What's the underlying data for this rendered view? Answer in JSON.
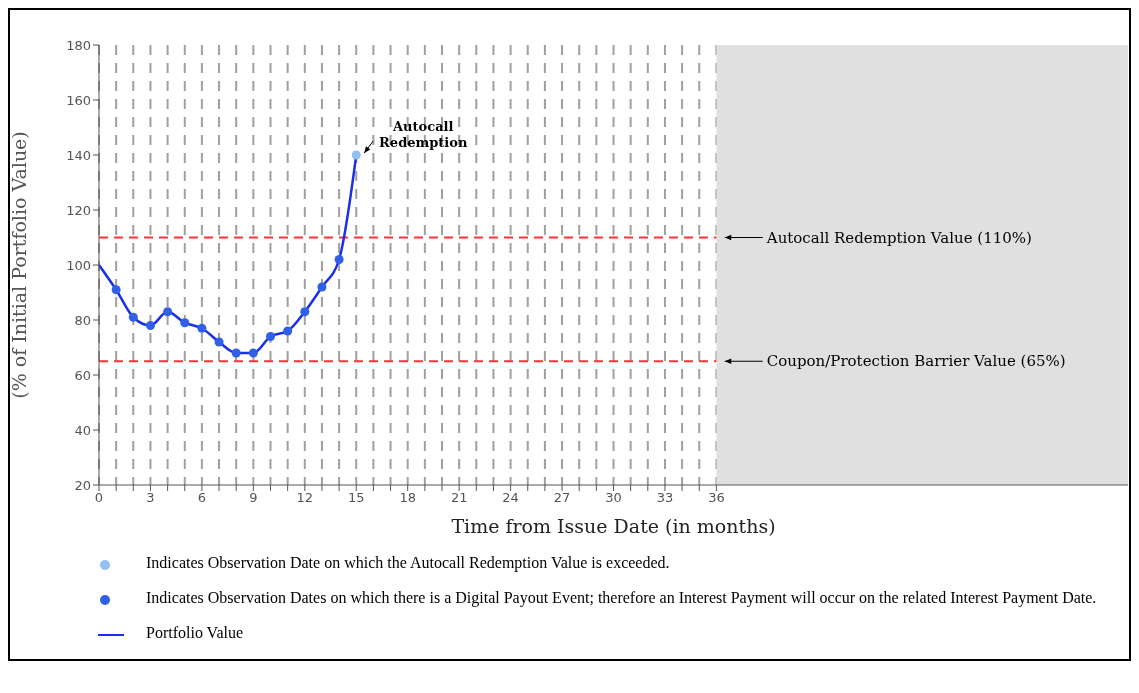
{
  "chart_data": {
    "type": "line",
    "xlabel": "Time from Issue Date (in months)",
    "ylabel": "(% of Initial Portfolio Value)",
    "xlim": [
      0,
      60
    ],
    "ylim": [
      20,
      180
    ],
    "xticks": [
      0,
      {
        "value": 1,
        "label": null
      },
      {
        "value": 2,
        "label": null
      },
      3,
      {
        "value": 4,
        "label": null
      },
      {
        "value": 5,
        "label": null
      },
      6,
      {
        "value": 7,
        "label": null
      },
      {
        "value": 8,
        "label": null
      },
      9,
      {
        "value": 10,
        "label": null
      },
      {
        "value": 11,
        "label": null
      },
      12,
      {
        "value": 13,
        "label": null
      },
      {
        "value": 14,
        "label": null
      },
      15,
      {
        "value": 16,
        "label": null
      },
      {
        "value": 17,
        "label": null
      },
      18,
      {
        "value": 19,
        "label": null
      },
      {
        "value": 20,
        "label": null
      },
      21,
      {
        "value": 22,
        "label": null
      },
      {
        "value": 23,
        "label": null
      },
      24,
      {
        "value": 25,
        "label": null
      },
      {
        "value": 26,
        "label": null
      },
      27,
      {
        "value": 28,
        "label": null
      },
      {
        "value": 29,
        "label": null
      },
      30,
      {
        "value": 31,
        "label": null
      },
      {
        "value": 32,
        "label": null
      },
      33,
      {
        "value": 34,
        "label": null
      },
      {
        "value": 35,
        "label": null
      },
      36
    ],
    "yticks": [
      20,
      40,
      60,
      80,
      100,
      120,
      140,
      160,
      180
    ],
    "grid": "x",
    "legend": "bottom",
    "series": [
      {
        "type": "scatter",
        "name": "Indicates Observation Date on which the Autocall Redemption Value is exceeded.",
        "color": "#90c0f4",
        "marker": "circle",
        "x": [
          15
        ],
        "values": [
          140
        ]
      },
      {
        "type": "scatter",
        "name": "Indicates Observation Dates on which there is a Digital Payout Event; therefore an Interest Payment will occur on the related Interest Payment Date.",
        "color": "#3060e8",
        "marker": "circle",
        "x": [
          1,
          2,
          3,
          4,
          5,
          6,
          7,
          8,
          9,
          10,
          11,
          12,
          13,
          14
        ],
        "values": [
          91,
          81,
          78,
          83,
          79,
          77,
          72,
          68,
          68,
          74,
          76,
          83,
          92,
          102
        ]
      },
      {
        "type": "line",
        "name": "Portfolio Value",
        "color": "#1a30e8",
        "marker": "none",
        "line_style": "solid",
        "x": [
          0,
          1,
          2,
          3,
          4,
          5,
          6,
          7,
          8,
          9,
          10,
          11,
          12,
          13,
          14,
          15
        ],
        "values": [
          100,
          91,
          81,
          78,
          83,
          79,
          77,
          72,
          68,
          68,
          74,
          76,
          83,
          92,
          102,
          140
        ]
      }
    ],
    "ref_lines": [
      {
        "axis": "y",
        "value": 110,
        "label": "Autocall Redemption Value (110%)",
        "color": "#ff3333",
        "line_style": "dashed"
      },
      {
        "axis": "y",
        "value": 65,
        "label": "Coupon/Protection Barrier Value (65%)",
        "color": "#ff3333",
        "line_style": "dashed"
      }
    ],
    "bands": [
      {
        "axis": "x",
        "from": 36,
        "to": 60,
        "color": "#e0e0e0"
      }
    ],
    "annotations": [
      {
        "text": "Autocall Redemption",
        "x": 15,
        "y": 140
      }
    ]
  }
}
